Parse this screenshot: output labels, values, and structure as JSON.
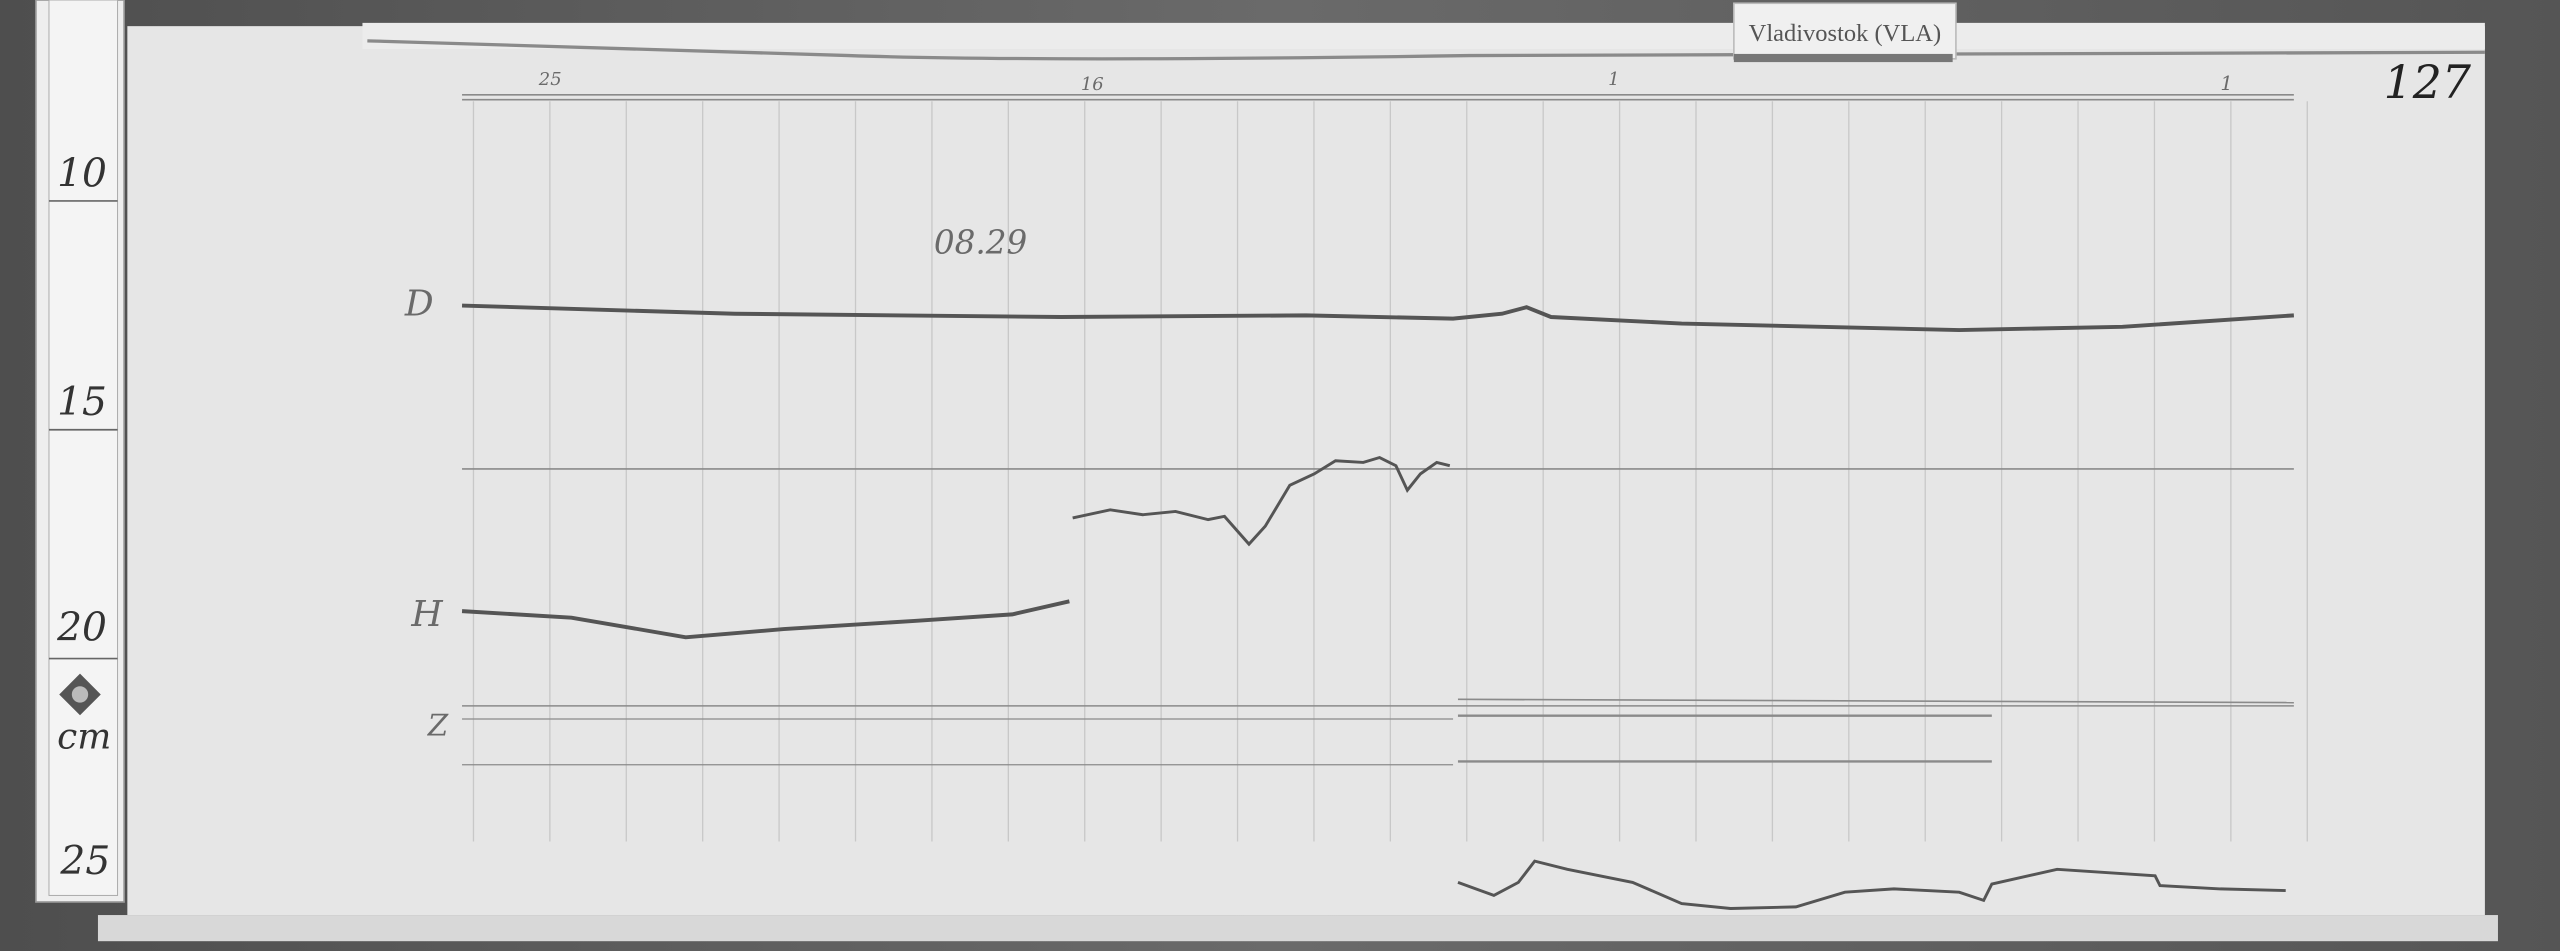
{
  "station_label": "Vladivostok (VLA)",
  "sheet_number": "127",
  "date_note": "08.29",
  "ruler": {
    "marks": [
      "10",
      "15",
      "20",
      "25"
    ],
    "unit": "cm",
    "logo": "diamond-logo"
  },
  "trace_labels": {
    "d": "D",
    "h": "H",
    "z": "Z"
  },
  "hour_marks": [
    "25",
    "16",
    "1",
    "1"
  ],
  "colors": {
    "background": "#5a5a5a",
    "paper": "#e6e6e6",
    "trace": "#555555",
    "grid": "#c8c8c8"
  }
}
